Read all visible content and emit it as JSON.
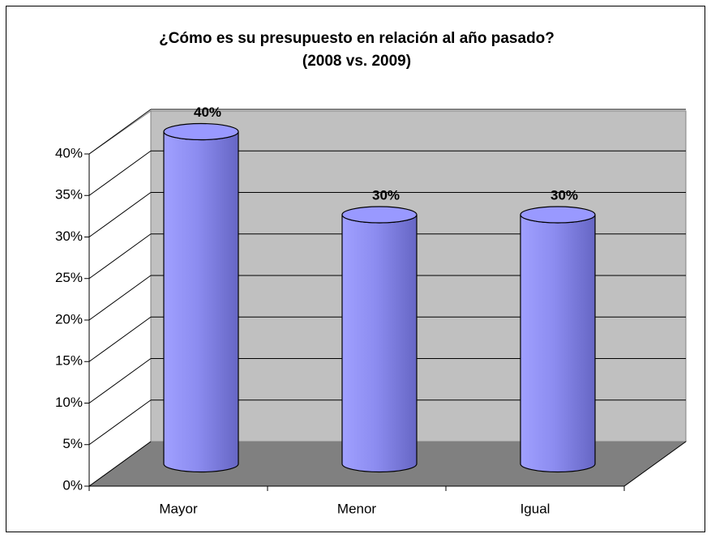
{
  "chart_data": {
    "type": "bar3d",
    "title": [
      "¿Cómo es su presupuesto en relación al año pasado?",
      "(2008 vs. 2009)"
    ],
    "categories": [
      "Mayor",
      "Menor",
      "Igual"
    ],
    "values": [
      40,
      30,
      30
    ],
    "value_labels": [
      "40%",
      "30%",
      "30%"
    ],
    "color": "#9999ff",
    "ylim": [
      0,
      40
    ],
    "yticks": [
      {
        "value": 0,
        "label": "0%"
      },
      {
        "value": 5,
        "label": "5%"
      },
      {
        "value": 10,
        "label": "10%"
      },
      {
        "value": 15,
        "label": "15%"
      },
      {
        "value": 20,
        "label": "20%"
      },
      {
        "value": 25,
        "label": "25%"
      },
      {
        "value": 30,
        "label": "30%"
      },
      {
        "value": 35,
        "label": "35%"
      },
      {
        "value": 40,
        "label": "40%"
      }
    ],
    "grid": true
  }
}
